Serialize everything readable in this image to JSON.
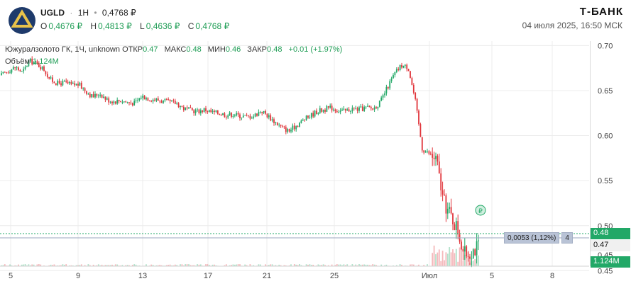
{
  "header": {
    "ticker": "UGLD",
    "interval": "1H",
    "last_price": "0,4768 ₽",
    "ohlc": [
      {
        "key": "O",
        "value": "0,4676 ₽"
      },
      {
        "key": "H",
        "value": "0,4813 ₽"
      },
      {
        "key": "L",
        "value": "0,4636 ₽"
      },
      {
        "key": "C",
        "value": "0,4768 ₽"
      }
    ],
    "brand": "Т-БАНК",
    "datetime": "04 июля 2025, 16:50 МСК"
  },
  "legend": {
    "title": "Южуралзолото ГК, 1Ч, unknown",
    "open_label": "ОТКР",
    "open": "0.47",
    "high_label": "МАКС",
    "high": "0.48",
    "low_label": "МИН",
    "low": "0.46",
    "close_label": "ЗАКР",
    "close": "0.48",
    "change": "+0.01 (+1.97%)",
    "volume_label": "Объём",
    "volume": "1.124M"
  },
  "price_tags": {
    "last": "0.48",
    "crosshair": "0.47",
    "partial": "0.45",
    "volume": "1.124M"
  },
  "ruler": {
    "change": "0,0053 (1,12%)",
    "bars": "4"
  },
  "colors": {
    "up": "#22a867",
    "down": "#e0353b",
    "grid": "#ececec"
  },
  "chart_data": {
    "type": "line",
    "title": "",
    "xlabel": "",
    "ylabel": "",
    "ylim": [
      0.455,
      0.705
    ],
    "x_ticks": [
      "5",
      "9",
      "13",
      "17",
      "21",
      "25",
      "Июл",
      "5",
      "8"
    ],
    "y_ticks": [
      "0.70",
      "0.65",
      "0.60",
      "0.55",
      "0.50",
      "0.45"
    ],
    "series": [
      {
        "values": [
          0.667,
          0.672,
          0.676,
          0.67,
          0.683,
          0.68,
          0.674,
          0.662,
          0.658,
          0.659,
          0.656,
          0.657,
          0.65,
          0.643,
          0.647,
          0.64,
          0.638,
          0.639,
          0.637,
          0.636,
          0.644,
          0.641,
          0.64,
          0.638,
          0.637,
          0.636,
          0.63,
          0.628,
          0.627,
          0.629,
          0.626,
          0.625,
          0.623,
          0.624,
          0.622,
          0.621,
          0.622,
          0.628,
          0.622,
          0.615,
          0.609,
          0.605,
          0.611,
          0.617,
          0.622,
          0.627,
          0.629,
          0.631,
          0.628,
          0.627,
          0.63,
          0.629,
          0.631,
          0.63,
          0.637,
          0.653,
          0.668,
          0.678,
          0.676,
          0.639,
          0.585,
          0.58,
          0.573,
          0.527,
          0.512,
          0.497,
          0.468,
          0.472,
          0.477
        ]
      }
    ]
  }
}
